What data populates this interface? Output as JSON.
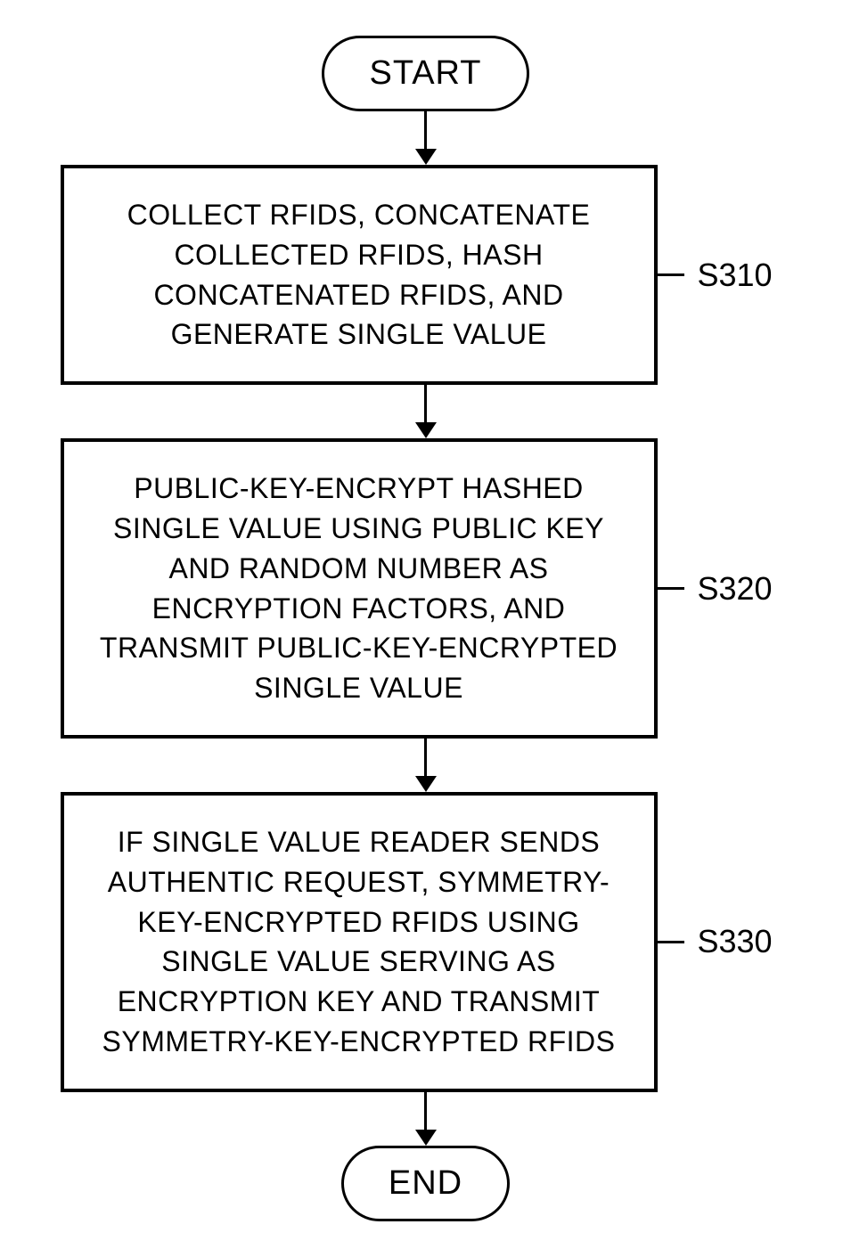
{
  "flowchart": {
    "type": "flowchart",
    "background_color": "#ffffff",
    "border_color": "#000000",
    "border_width": 4,
    "terminal_border_width": 3,
    "terminal_border_radius": 50,
    "font_family": "Arial, sans-serif",
    "terminal_fontsize": 38,
    "process_fontsize": 32,
    "label_fontsize": 36,
    "nodes": {
      "start": {
        "type": "terminal",
        "text": "START"
      },
      "step1": {
        "type": "process",
        "text": "COLLECT RFIDS, CONCATENATE COLLECTED RFIDS, HASH CONCATENATED RFIDS, AND GENERATE SINGLE VALUE",
        "label": "S310"
      },
      "step2": {
        "type": "process",
        "text": "PUBLIC-KEY-ENCRYPT HASHED SINGLE VALUE USING PUBLIC KEY AND RANDOM NUMBER AS ENCRYPTION FACTORS, AND TRANSMIT PUBLIC-KEY-ENCRYPTED SINGLE VALUE",
        "label": "S320"
      },
      "step3": {
        "type": "process",
        "text": "IF SINGLE VALUE READER SENDS AUTHENTIC REQUEST, SYMMETRY-KEY-ENCRYPTED RFIDS USING SINGLE VALUE SERVING AS ENCRYPTION KEY AND TRANSMIT SYMMETRY-KEY-ENCRYPTED RFIDS",
        "label": "S330"
      },
      "end": {
        "type": "terminal",
        "text": "END"
      }
    },
    "edges": [
      {
        "from": "start",
        "to": "step1"
      },
      {
        "from": "step1",
        "to": "step2"
      },
      {
        "from": "step2",
        "to": "step3"
      },
      {
        "from": "step3",
        "to": "end"
      }
    ],
    "arrow_height": 60,
    "arrow_head_size": 18,
    "process_width": 670,
    "connector_width": 30
  }
}
